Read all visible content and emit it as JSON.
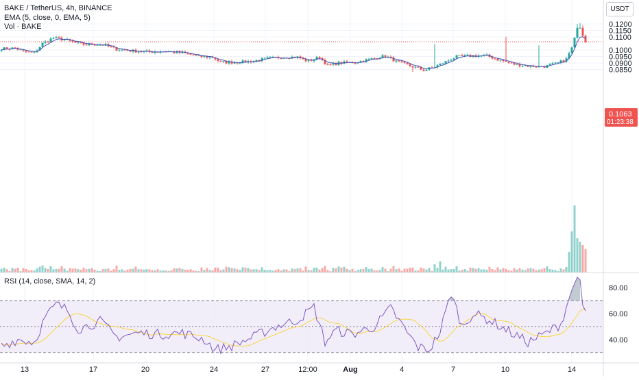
{
  "legend": {
    "symbol_line": "BAKE / TetherUS, 4h, BINANCE",
    "ema_line": "EMA (5, close, 0, EMA, 5)",
    "vol_line": "Vol · BAKE",
    "rsi_line": "RSI (14, close, SMA, 14, 2)"
  },
  "currency_label": "USDT",
  "colors": {
    "up": "#26a69a",
    "down": "#ef5350",
    "ema": "#3e52b7",
    "rsi": "#7e57c2",
    "rsi_ma": "#f7d542",
    "rsi_band": "#ede7f6",
    "price_tag": "#ef5350"
  },
  "chart_data": [
    {
      "type": "candlestick",
      "title": "BAKE / TetherUS, 4h, BINANCE",
      "y_ticks": [
        "0.1200",
        "0.1150",
        "0.1100",
        "0.1000",
        "0.0950",
        "0.0900",
        "0.0850"
      ],
      "ylim": [
        0.0825,
        0.1215
      ],
      "x_ticks": [
        "13",
        "17",
        "20",
        "24",
        "27",
        "12:00",
        "Aug",
        "4",
        "7",
        "10",
        "14"
      ],
      "last_price": "0.1063",
      "countdown": "01:23:38",
      "grid": true,
      "series": [
        {
          "name": "EMA (5, close, 0, EMA, 5)",
          "kind": "line"
        },
        {
          "name": "Vol · BAKE",
          "kind": "volume"
        }
      ],
      "anchors": [
        [
          0,
          0.101
        ],
        [
          5,
          0.1015
        ],
        [
          8,
          0.099
        ],
        [
          12,
          0.0975
        ],
        [
          15,
          0.105
        ],
        [
          19,
          0.1095
        ],
        [
          23,
          0.108
        ],
        [
          27,
          0.1055
        ],
        [
          31,
          0.104
        ],
        [
          34,
          0.1045
        ],
        [
          38,
          0.1035
        ],
        [
          42,
          0.1005
        ],
        [
          48,
          0.0992
        ],
        [
          54,
          0.0985
        ],
        [
          60,
          0.099
        ],
        [
          66,
          0.0978
        ],
        [
          72,
          0.095
        ],
        [
          77,
          0.0945
        ],
        [
          80,
          0.0905
        ],
        [
          86,
          0.0905
        ],
        [
          92,
          0.0915
        ],
        [
          97,
          0.0935
        ],
        [
          103,
          0.0945
        ],
        [
          108,
          0.0945
        ],
        [
          112,
          0.0912
        ],
        [
          116,
          0.0945
        ],
        [
          119,
          0.088
        ],
        [
          123,
          0.09
        ],
        [
          129,
          0.0905
        ],
        [
          135,
          0.0932
        ],
        [
          140,
          0.0955
        ],
        [
          144,
          0.0912
        ],
        [
          148,
          0.0885
        ],
        [
          154,
          0.0845
        ],
        [
          158,
          0.087
        ],
        [
          163,
          0.092
        ],
        [
          166,
          0.095
        ],
        [
          172,
          0.0955
        ],
        [
          177,
          0.0955
        ],
        [
          182,
          0.092
        ],
        [
          187,
          0.089
        ],
        [
          193,
          0.0875
        ],
        [
          198,
          0.0872
        ],
        [
          203,
          0.09
        ],
        [
          206,
          0.093
        ],
        [
          208,
          0.102
        ],
        [
          210,
          0.117
        ],
        [
          211,
          0.117
        ],
        [
          212,
          0.111
        ],
        [
          213,
          0.1063
        ]
      ],
      "spikes": [
        [
          150,
          0.0832
        ],
        [
          158,
          0.1045
        ],
        [
          184,
          0.1102
        ],
        [
          196,
          0.1035
        ],
        [
          210,
          0.12
        ],
        [
          211,
          0.1205
        ],
        [
          212,
          0.119
        ]
      ]
    },
    {
      "type": "line",
      "title": "RSI (14, close, SMA, 14, 2)",
      "y_ticks": [
        "80.00",
        "60.00",
        "40.00"
      ],
      "ylim": [
        25,
        90
      ],
      "bands": [
        30,
        50,
        70
      ],
      "series": [
        {
          "name": "RSI",
          "kind": "line"
        },
        {
          "name": "SMA 14",
          "kind": "line"
        }
      ],
      "anchors": [
        [
          0,
          35
        ],
        [
          6,
          40
        ],
        [
          12,
          38
        ],
        [
          16,
          57
        ],
        [
          20,
          67
        ],
        [
          24,
          63
        ],
        [
          28,
          48
        ],
        [
          36,
          54
        ],
        [
          42,
          42
        ],
        [
          50,
          45
        ],
        [
          58,
          44
        ],
        [
          66,
          45
        ],
        [
          74,
          40
        ],
        [
          78,
          32
        ],
        [
          84,
          35
        ],
        [
          92,
          42
        ],
        [
          100,
          50
        ],
        [
          108,
          55
        ],
        [
          114,
          65
        ],
        [
          118,
          38
        ],
        [
          122,
          47
        ],
        [
          128,
          44
        ],
        [
          136,
          50
        ],
        [
          142,
          64
        ],
        [
          148,
          45
        ],
        [
          152,
          34
        ],
        [
          156,
          32
        ],
        [
          160,
          46
        ],
        [
          164,
          76
        ],
        [
          168,
          50
        ],
        [
          172,
          60
        ],
        [
          178,
          55
        ],
        [
          186,
          45
        ],
        [
          192,
          38
        ],
        [
          198,
          44
        ],
        [
          204,
          52
        ],
        [
          208,
          78
        ],
        [
          210,
          88
        ],
        [
          211,
          86
        ],
        [
          212,
          66
        ],
        [
          213,
          62
        ]
      ]
    }
  ]
}
